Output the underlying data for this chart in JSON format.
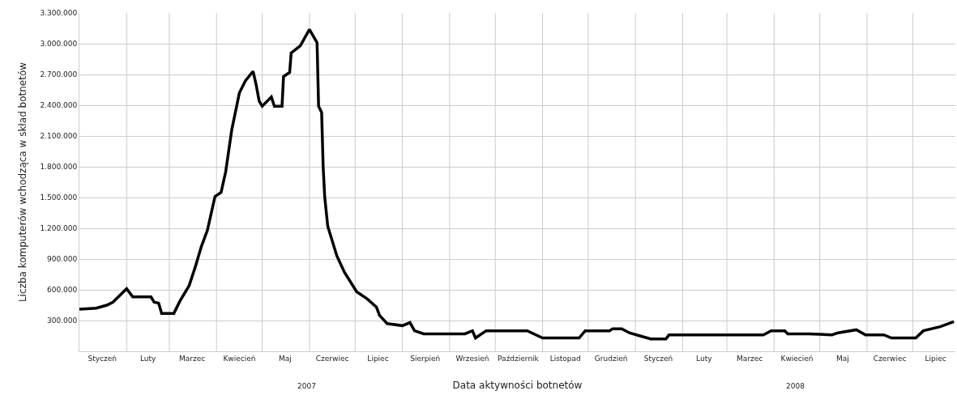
{
  "chart_data": {
    "type": "line",
    "xlabel": "Data aktywności botnetów",
    "ylabel": "Liczba komputerów wchodząca w skład botnetów",
    "x": [
      "2007-01-01",
      "2007-01-12",
      "2007-01-19",
      "2007-01-23",
      "2007-02-01",
      "2007-02-05",
      "2007-02-17",
      "2007-02-19",
      "2007-02-22",
      "2007-02-24",
      "2007-03-04",
      "2007-03-08",
      "2007-03-14",
      "2007-03-18",
      "2007-03-22",
      "2007-03-26",
      "2007-03-31",
      "2007-04-04",
      "2007-04-07",
      "2007-04-11",
      "2007-04-16",
      "2007-04-20",
      "2007-04-25",
      "2007-04-27",
      "2007-04-29",
      "2007-05-01",
      "2007-05-07",
      "2007-05-09",
      "2007-05-14",
      "2007-05-15",
      "2007-05-19",
      "2007-05-20",
      "2007-05-26",
      "2007-06-01",
      "2007-06-06",
      "2007-06-07",
      "2007-06-09",
      "2007-06-10",
      "2007-06-11",
      "2007-06-13",
      "2007-06-19",
      "2007-06-24",
      "2007-07-02",
      "2007-07-09",
      "2007-07-15",
      "2007-07-17",
      "2007-07-22",
      "2007-08-01",
      "2007-08-06",
      "2007-08-09",
      "2007-08-15",
      "2007-09-11",
      "2007-09-16",
      "2007-09-18",
      "2007-09-25",
      "2007-10-22",
      "2007-11-01",
      "2007-11-25",
      "2007-11-29",
      "2007-12-15",
      "2007-12-17",
      "2007-12-23",
      "2007-12-28",
      "2008-01-04",
      "2008-01-11",
      "2008-01-21",
      "2008-01-23",
      "2008-03-25",
      "2008-03-30",
      "2008-04-08",
      "2008-04-10",
      "2008-04-24",
      "2008-05-09",
      "2008-05-13",
      "2008-05-25",
      "2008-05-31",
      "2008-06-12",
      "2008-06-17",
      "2008-07-03",
      "2008-07-08",
      "2008-07-19",
      "2008-07-28"
    ],
    "series": [
      {
        "color": "#000000",
        "values": [
          410000,
          420000,
          450000,
          480000,
          610000,
          530000,
          530000,
          480000,
          470000,
          370000,
          370000,
          490000,
          640000,
          820000,
          1020000,
          1180000,
          1510000,
          1550000,
          1750000,
          2160000,
          2520000,
          2640000,
          2730000,
          2600000,
          2440000,
          2390000,
          2480000,
          2390000,
          2390000,
          2680000,
          2720000,
          2910000,
          2980000,
          3140000,
          3010000,
          2390000,
          2330000,
          1800000,
          1510000,
          1220000,
          930000,
          770000,
          580000,
          510000,
          430000,
          350000,
          270000,
          250000,
          280000,
          200000,
          170000,
          170000,
          200000,
          130000,
          200000,
          200000,
          130000,
          130000,
          200000,
          200000,
          220000,
          220000,
          180000,
          150000,
          120000,
          120000,
          160000,
          160000,
          200000,
          200000,
          170000,
          170000,
          160000,
          180000,
          210000,
          160000,
          160000,
          130000,
          130000,
          200000,
          240000,
          290000
        ]
      }
    ],
    "xlim": [
      "2007-01-01",
      "2008-07-29"
    ],
    "xticks": [
      {
        "value": "2007-01-16",
        "label": "Styczeń"
      },
      {
        "value": "2007-02-01",
        "label": null
      },
      {
        "value": "2007-02-15",
        "label": "Luty"
      },
      {
        "value": "2007-03-01",
        "label": null
      },
      {
        "value": "2007-03-16",
        "label": "Marzec"
      },
      {
        "value": "2007-04-01",
        "label": null
      },
      {
        "value": "2007-04-16",
        "label": "Kwiecień"
      },
      {
        "value": "2007-05-01",
        "label": null
      },
      {
        "value": "2007-05-16",
        "label": "Maj"
      },
      {
        "value": "2007-06-01",
        "label": null
      },
      {
        "value": "2007-06-16",
        "label": "Czerwiec"
      },
      {
        "value": "2007-07-01",
        "label": null
      },
      {
        "value": "2007-07-16",
        "label": "Lipiec"
      },
      {
        "value": "2007-08-01",
        "label": null
      },
      {
        "value": "2007-08-16",
        "label": "Sierpień"
      },
      {
        "value": "2007-09-01",
        "label": null
      },
      {
        "value": "2007-09-16",
        "label": "Wrzesień"
      },
      {
        "value": "2007-10-01",
        "label": null
      },
      {
        "value": "2007-10-16",
        "label": "Październik"
      },
      {
        "value": "2007-11-01",
        "label": null
      },
      {
        "value": "2007-11-16",
        "label": "Listopad"
      },
      {
        "value": "2007-12-01",
        "label": null
      },
      {
        "value": "2007-12-16",
        "label": "Grudzień"
      },
      {
        "value": "2008-01-01",
        "label": null
      },
      {
        "value": "2008-01-16",
        "label": "Styczeń"
      },
      {
        "value": "2008-02-01",
        "label": null
      },
      {
        "value": "2008-02-15",
        "label": "Luty"
      },
      {
        "value": "2008-03-01",
        "label": null
      },
      {
        "value": "2008-03-16",
        "label": "Marzec"
      },
      {
        "value": "2008-04-01",
        "label": null
      },
      {
        "value": "2008-04-16",
        "label": "Kwiecień"
      },
      {
        "value": "2008-05-01",
        "label": null
      },
      {
        "value": "2008-05-16",
        "label": "Maj"
      },
      {
        "value": "2008-06-01",
        "label": null
      },
      {
        "value": "2008-06-16",
        "label": "Czerwiec"
      },
      {
        "value": "2008-07-01",
        "label": null
      },
      {
        "value": "2008-07-16",
        "label": "Lipiec"
      }
    ],
    "ylim": [
      0,
      3300000
    ],
    "yticks": [
      {
        "value": 300000,
        "label": "300.000"
      },
      {
        "value": 600000,
        "label": "600.000"
      },
      {
        "value": 900000,
        "label": "900.000"
      },
      {
        "value": 1200000,
        "label": "1.200.000"
      },
      {
        "value": 1500000,
        "label": "1.500.000"
      },
      {
        "value": 1800000,
        "label": "1.800.000"
      },
      {
        "value": 2100000,
        "label": "2.100.000"
      },
      {
        "value": 2400000,
        "label": "2.400.000"
      },
      {
        "value": 2700000,
        "label": "2.700.000"
      },
      {
        "value": 3000000,
        "label": "3.000.000"
      },
      {
        "value": 3300000,
        "label": "3.300.000"
      }
    ],
    "annotations": [
      "2007",
      "2008"
    ],
    "grid": true,
    "marker": "none",
    "line_style": "solid"
  }
}
